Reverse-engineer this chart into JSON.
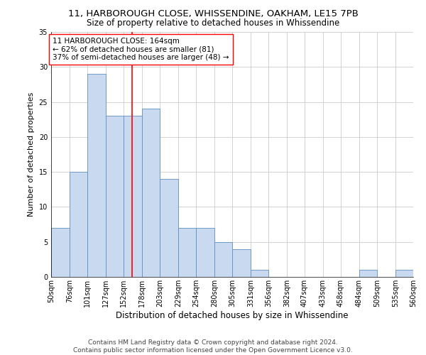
{
  "title_line1": "11, HARBOROUGH CLOSE, WHISSENDINE, OAKHAM, LE15 7PB",
  "title_line2": "Size of property relative to detached houses in Whissendine",
  "xlabel": "Distribution of detached houses by size in Whissendine",
  "ylabel": "Number of detached properties",
  "bins": [
    50,
    76,
    101,
    127,
    152,
    178,
    203,
    229,
    254,
    280,
    305,
    331,
    356,
    382,
    407,
    433,
    458,
    484,
    509,
    535,
    560
  ],
  "bar_labels": [
    "50sqm",
    "76sqm",
    "101sqm",
    "127sqm",
    "152sqm",
    "178sqm",
    "203sqm",
    "229sqm",
    "254sqm",
    "280sqm",
    "305sqm",
    "331sqm",
    "356sqm",
    "382sqm",
    "407sqm",
    "433sqm",
    "458sqm",
    "484sqm",
    "509sqm",
    "535sqm",
    "560sqm"
  ],
  "values": [
    7,
    15,
    29,
    23,
    23,
    24,
    14,
    7,
    7,
    5,
    4,
    1,
    0,
    0,
    0,
    0,
    0,
    1,
    0,
    1,
    0
  ],
  "bar_color": "#c9d9f0",
  "bar_edgecolor": "#6090c0",
  "bar_linewidth": 0.6,
  "vline_x": 164,
  "vline_color": "red",
  "vline_linewidth": 1.2,
  "annotation_text": "11 HARBOROUGH CLOSE: 164sqm\n← 62% of detached houses are smaller (81)\n37% of semi-detached houses are larger (48) →",
  "annotation_box_color": "white",
  "annotation_box_edgecolor": "red",
  "ylim": [
    0,
    35
  ],
  "yticks": [
    0,
    5,
    10,
    15,
    20,
    25,
    30,
    35
  ],
  "grid_color": "#cccccc",
  "background_color": "white",
  "footer_text": "Contains HM Land Registry data © Crown copyright and database right 2024.\nContains public sector information licensed under the Open Government Licence v3.0.",
  "title_fontsize": 9.5,
  "subtitle_fontsize": 8.5,
  "ylabel_fontsize": 8,
  "xlabel_fontsize": 8.5,
  "tick_fontsize": 7,
  "annotation_fontsize": 7.5,
  "footer_fontsize": 6.5
}
